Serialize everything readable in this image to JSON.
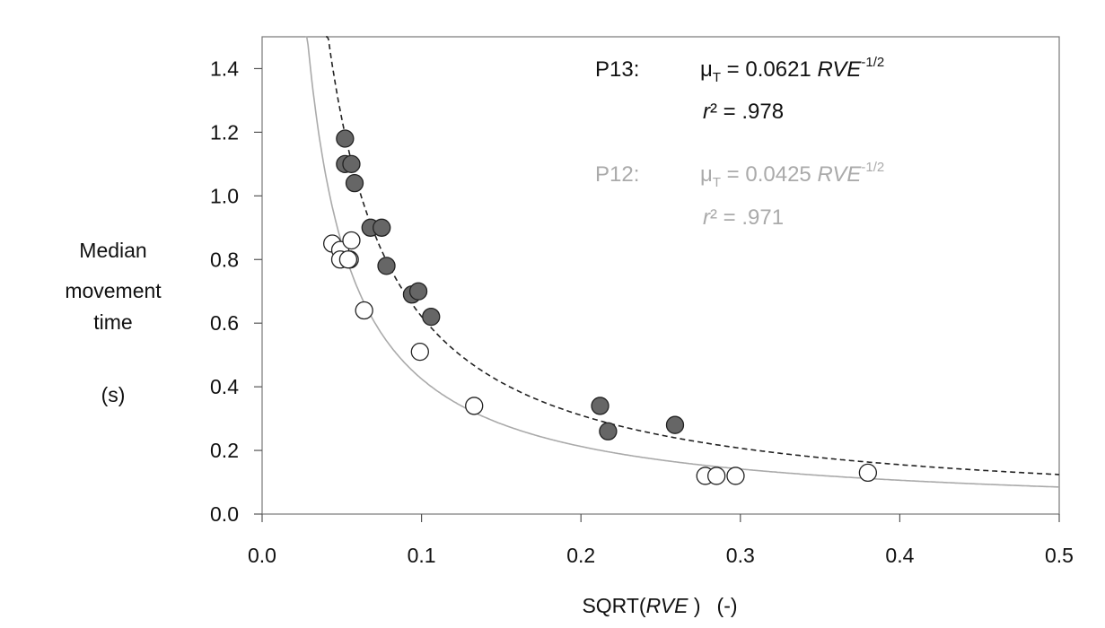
{
  "chart_data": {
    "type": "scatter",
    "xlabel": "SQRT(RVE) (-)",
    "xlabel_parts": {
      "pre": "SQRT(",
      "italic": "RVE",
      "post": " )",
      "unit": "(-)"
    },
    "ylabel_lines": [
      "Median",
      "movement",
      "time"
    ],
    "ylabel_unit": "(s)",
    "xlim": [
      0.0,
      0.5
    ],
    "ylim": [
      0.0,
      1.5
    ],
    "xticks": [
      "0.0",
      "0.1",
      "0.2",
      "0.3",
      "0.4",
      "0.5"
    ],
    "xtick_values": [
      0.0,
      0.1,
      0.2,
      0.3,
      0.4,
      0.5
    ],
    "yticks": [
      "0.0",
      "0.2",
      "0.4",
      "0.6",
      "0.8",
      "1.0",
      "1.2",
      "1.4"
    ],
    "ytick_values": [
      0.0,
      0.2,
      0.4,
      0.6,
      0.8,
      1.0,
      1.2,
      1.4
    ],
    "grid": false,
    "series": [
      {
        "name": "P13",
        "marker": "filled",
        "color": "#666666",
        "x": [
          0.052,
          0.052,
          0.056,
          0.058,
          0.068,
          0.075,
          0.078,
          0.094,
          0.098,
          0.106,
          0.212,
          0.217,
          0.259
        ],
        "y": [
          1.18,
          1.1,
          1.1,
          1.04,
          0.9,
          0.9,
          0.78,
          0.69,
          0.7,
          0.62,
          0.34,
          0.26,
          0.28
        ],
        "fit": {
          "coef": 0.0621,
          "line_style": "dashed",
          "line_color": "#222222"
        }
      },
      {
        "name": "P12",
        "marker": "open",
        "color": "#ffffff",
        "x": [
          0.044,
          0.049,
          0.049,
          0.055,
          0.054,
          0.056,
          0.064,
          0.099,
          0.133,
          0.278,
          0.285,
          0.297,
          0.38
        ],
        "y": [
          0.85,
          0.83,
          0.8,
          0.8,
          0.8,
          0.86,
          0.64,
          0.51,
          0.34,
          0.12,
          0.12,
          0.12,
          0.13
        ],
        "fit": {
          "coef": 0.0425,
          "line_style": "solid",
          "line_color": "#aaaaaa"
        }
      }
    ],
    "annotations": [
      {
        "label": "P13:",
        "eq_pre": "μ",
        "eq_sub": "T",
        "eq_mid": " = 0.0621 ",
        "eq_italic": "RVE",
        "eq_sup": "-1/2",
        "r2_italic": "r",
        "r2_rest": "² = .978",
        "color": "#111111"
      },
      {
        "label": "P12:",
        "eq_pre": "μ",
        "eq_sub": "T",
        "eq_mid": " = 0.0425 ",
        "eq_italic": "RVE",
        "eq_sup": "-1/2",
        "r2_italic": "r",
        "r2_rest": "² = .971",
        "color": "#aaaaaa"
      }
    ]
  }
}
